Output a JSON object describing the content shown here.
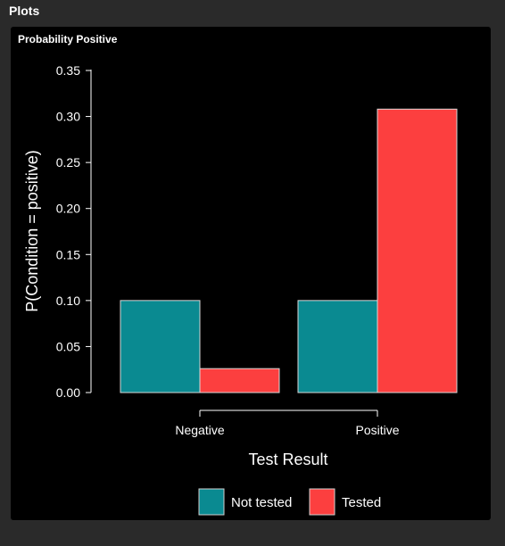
{
  "panel": {
    "title": "Plots"
  },
  "plot": {
    "title": "Probability Positive"
  },
  "chart_data": {
    "type": "bar",
    "categories": [
      "Negative",
      "Positive"
    ],
    "series": [
      {
        "name": "Not tested",
        "color": "#0a8a91",
        "values": [
          0.1,
          0.1
        ]
      },
      {
        "name": "Tested",
        "color": "#fc3f3f",
        "values": [
          0.026,
          0.308
        ]
      }
    ],
    "xlabel": "Test Result",
    "ylabel": "P(Condition = positive)",
    "ylim": [
      0,
      0.35
    ],
    "yticks": [
      0.0,
      0.05,
      0.1,
      0.15,
      0.2,
      0.25,
      0.3,
      0.35
    ],
    "ytick_labels": [
      "0.00",
      "0.05",
      "0.10",
      "0.15",
      "0.20",
      "0.25",
      "0.30",
      "0.35"
    ],
    "grid": false,
    "legend_position": "bottom"
  }
}
